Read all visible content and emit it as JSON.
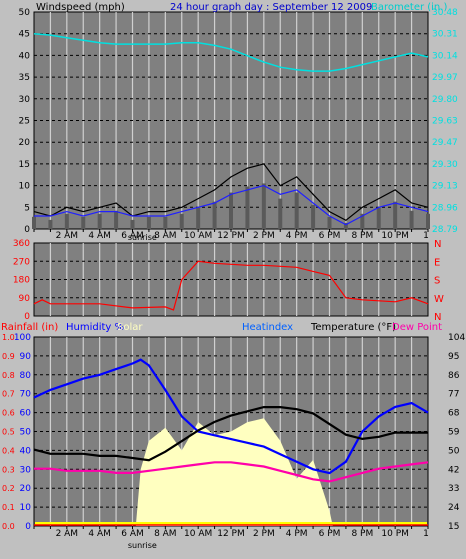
{
  "header": {
    "title": "24 hour graph day : September 12 2009",
    "wind_label": "Windspeed (mph)",
    "baro_label": "Barometer (in.)"
  },
  "colors": {
    "background": "#c0c0c0",
    "plot_bg": "#808080",
    "grid": "#000000",
    "vgrid": "#d0d0d0",
    "baro": "#00e0e0",
    "wind": "#000000",
    "wind_avg": "#2020ff",
    "gust_bars": "#5a5a5a",
    "direction": "#ff0000",
    "rain": "#ff0000",
    "humidity": "#0000ff",
    "solar": "#ffffc0",
    "heat": "#0060ff",
    "temperature": "#000000",
    "dew": "#ff00aa",
    "bottom_strip": "#ffff00"
  },
  "chart_data": [
    {
      "type": "line",
      "name": "wind-baro",
      "x_ticks": [
        "2 AM",
        "4 AM",
        "6 AM",
        "8 AM",
        "10 AM",
        "12 PM",
        "2 PM",
        "4 PM",
        "6 PM",
        "8 PM",
        "10 PM",
        "1"
      ],
      "x_sunrise_label": "sunrise",
      "y_left_ticks": [
        "0",
        "5",
        "10",
        "15",
        "20",
        "25",
        "30",
        "35",
        "40",
        "45",
        "50"
      ],
      "y_right_ticks": [
        "28.79",
        "28.96",
        "29.13",
        "29.30",
        "29.47",
        "29.63",
        "29.80",
        "29.97",
        "30.14",
        "30.31",
        "30.48"
      ],
      "ylim_left": [
        0,
        50
      ],
      "ylim_right": [
        28.79,
        30.48
      ],
      "series": [
        {
          "key": "baro",
          "axis": "right",
          "x": [
            0,
            1,
            2,
            3,
            4,
            5,
            6,
            7,
            8,
            9,
            10,
            11,
            12,
            13,
            14,
            15,
            16,
            17,
            18,
            19,
            20,
            21,
            22,
            23,
            24
          ],
          "values": [
            30.31,
            30.3,
            30.28,
            30.26,
            30.24,
            30.23,
            30.23,
            30.23,
            30.23,
            30.24,
            30.24,
            30.22,
            30.19,
            30.14,
            30.09,
            30.05,
            30.03,
            30.02,
            30.02,
            30.04,
            30.07,
            30.1,
            30.13,
            30.16,
            30.13
          ]
        },
        {
          "key": "wind",
          "axis": "left",
          "x": [
            0,
            1,
            2,
            3,
            4,
            5,
            6,
            7,
            8,
            9,
            10,
            11,
            12,
            13,
            14,
            15,
            16,
            17,
            18,
            19,
            20,
            21,
            22,
            23,
            24
          ],
          "values": [
            4,
            3,
            5,
            4,
            5,
            6,
            3,
            4,
            4,
            5,
            7,
            9,
            12,
            14,
            15,
            10,
            12,
            8,
            4,
            2,
            5,
            7,
            9,
            6,
            5
          ]
        },
        {
          "key": "wind_avg",
          "axis": "left",
          "x": [
            0,
            1,
            2,
            3,
            4,
            5,
            6,
            7,
            8,
            9,
            10,
            11,
            12,
            13,
            14,
            15,
            16,
            17,
            18,
            19,
            20,
            21,
            22,
            23,
            24
          ],
          "values": [
            3,
            3,
            4,
            3,
            4,
            4,
            3,
            3,
            3,
            4,
            5,
            6,
            8,
            9,
            10,
            8,
            9,
            6,
            3,
            1,
            3,
            5,
            6,
            5,
            4
          ]
        }
      ]
    },
    {
      "type": "line",
      "name": "wind-direction",
      "y_left_ticks": [
        "0",
        "90",
        "180",
        "270",
        "360"
      ],
      "y_right_ticks": [
        "N",
        "W",
        "S",
        "E",
        "N"
      ],
      "ylim": [
        0,
        360
      ],
      "series": [
        {
          "key": "direction",
          "x": [
            0,
            0.5,
            1,
            2,
            3,
            3.6,
            4,
            6,
            8,
            8.5,
            9,
            10,
            11,
            12,
            13,
            14,
            15,
            16,
            17,
            18,
            19,
            20,
            21,
            22,
            23,
            24
          ],
          "values": [
            60,
            80,
            60,
            60,
            60,
            60,
            60,
            40,
            45,
            30,
            180,
            270,
            260,
            255,
            250,
            250,
            245,
            240,
            220,
            200,
            90,
            80,
            75,
            70,
            90,
            60
          ]
        }
      ]
    },
    {
      "type": "line",
      "name": "temp-humidity",
      "header_labels": {
        "rainfall": "Rainfall (in)",
        "humidity": "Humidity %",
        "solar": "Solar",
        "heatindex": "Heatindex",
        "temperature": "Temperature (°F)",
        "dewpoint": "Dew Point"
      },
      "y_left_rain_ticks": [
        "0.0",
        "0.1",
        "0.2",
        "0.3",
        "0.4",
        "0.5",
        "0.6",
        "0.7",
        "0.8",
        "0.9",
        "1.0"
      ],
      "y_left_hum_ticks": [
        "0",
        "10",
        "20",
        "30",
        "40",
        "50",
        "60",
        "70",
        "80",
        "90",
        "100"
      ],
      "y_right_ticks": [
        "15",
        "24",
        "33",
        "42",
        "50",
        "59",
        "68",
        "77",
        "86",
        "95",
        "104"
      ],
      "ylim_left": [
        0,
        100
      ],
      "ylim_right": [
        15,
        104
      ],
      "series": [
        {
          "key": "humidity",
          "axis": "left",
          "x": [
            0,
            1,
            2,
            3,
            4,
            5,
            6,
            6.5,
            7,
            8,
            9,
            10,
            11,
            12,
            13,
            14,
            15,
            16,
            17,
            18,
            19,
            20,
            21,
            22,
            23,
            24
          ],
          "values": [
            68,
            72,
            75,
            78,
            80,
            83,
            86,
            88,
            85,
            72,
            58,
            50,
            48,
            46,
            44,
            42,
            38,
            34,
            30,
            28,
            34,
            50,
            58,
            63,
            65,
            60
          ]
        },
        {
          "key": "temperature",
          "axis": "right",
          "x": [
            0,
            1,
            2,
            3,
            4,
            5,
            6,
            7,
            8,
            9,
            10,
            11,
            12,
            13,
            14,
            15,
            16,
            17,
            18,
            19,
            20,
            21,
            22,
            23,
            24
          ],
          "values": [
            51,
            49,
            49,
            49,
            48,
            48,
            47,
            46,
            50,
            55,
            60,
            64,
            67,
            69,
            71,
            71,
            70,
            68,
            63,
            58,
            56,
            57,
            59,
            59,
            59
          ]
        },
        {
          "key": "dew",
          "axis": "right",
          "x": [
            0,
            1,
            2,
            3,
            4,
            5,
            6,
            7,
            8,
            9,
            10,
            11,
            12,
            13,
            14,
            15,
            16,
            17,
            18,
            19,
            20,
            21,
            22,
            23,
            24
          ],
          "values": [
            42,
            42,
            41,
            41,
            41,
            40,
            40,
            41,
            42,
            43,
            44,
            45,
            45,
            44,
            43,
            41,
            39,
            37,
            36,
            38,
            40,
            42,
            43,
            44,
            45
          ]
        },
        {
          "key": "solar",
          "axis": "left",
          "x": [
            6.2,
            6.5,
            7,
            8,
            9,
            10,
            11,
            12,
            13,
            14,
            15,
            16,
            17,
            18,
            18.2
          ],
          "values": [
            0,
            30,
            45,
            52,
            40,
            55,
            48,
            50,
            55,
            57,
            45,
            25,
            35,
            8,
            0
          ]
        },
        {
          "key": "rain",
          "axis": "left",
          "x": [
            0,
            24
          ],
          "values": [
            0,
            0
          ]
        }
      ]
    }
  ]
}
